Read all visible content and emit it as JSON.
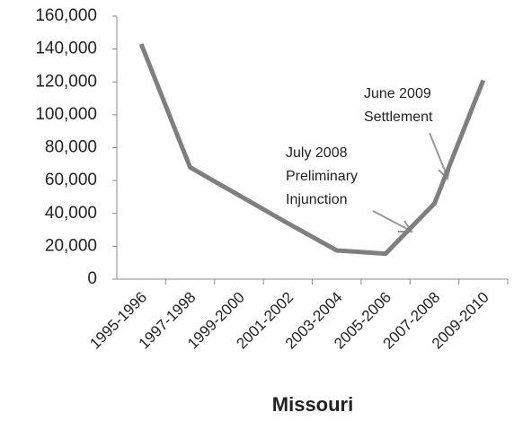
{
  "chart_data": {
    "type": "line",
    "xlabel": "Missouri",
    "categories": [
      "1995-1996",
      "1997-1998",
      "1999-2000",
      "2001-2002",
      "2003-2004",
      "2005-2006",
      "2007-2008",
      "2009-2010"
    ],
    "series": [
      {
        "name": "Missouri",
        "color": "#7f7f7f",
        "values": [
          143000,
          68000,
          51000,
          34000,
          17500,
          15500,
          46000,
          121000
        ]
      }
    ],
    "ylim": [
      0,
      160000
    ],
    "yticks": [
      0,
      {
        "value": 20000,
        "label": "20,000"
      },
      {
        "value": 40000,
        "label": "40,000"
      },
      {
        "value": 60000,
        "label": "60,000"
      },
      {
        "value": 80000,
        "label": "80,000"
      },
      {
        "value": 100000,
        "label": "100,000"
      },
      {
        "value": 120000,
        "label": "120,000"
      },
      {
        "value": 140000,
        "label": "140,000"
      },
      {
        "value": 160000,
        "label": "160,000"
      }
    ],
    "grid": false,
    "annotations": [
      {
        "lines": [
          "July 2008",
          "Preliminary",
          "Injunction"
        ]
      },
      {
        "lines": [
          "June 2009",
          "Settlement"
        ]
      }
    ]
  }
}
